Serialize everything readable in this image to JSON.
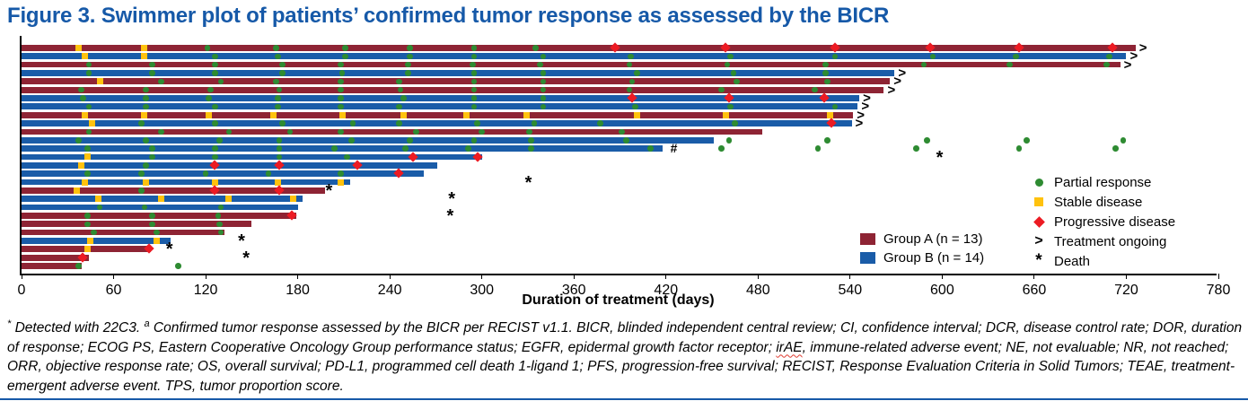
{
  "title": "Figure 3. Swimmer plot of patients’ confirmed tumor response as assessed by the BICR",
  "colors": {
    "title_blue": "#1659A8",
    "group_a": "#8E2434",
    "group_b": "#1A5CA8",
    "partial_response": "#2E8B32",
    "stable_disease": "#FFC20E",
    "progressive_disease": "#EC1B23",
    "axis": "#000000"
  },
  "legend": {
    "items": [
      {
        "marker": "partial-response",
        "label": "Partial response"
      },
      {
        "marker": "stable-disease",
        "label": "Stable disease"
      },
      {
        "marker": "progressive-disease",
        "label": "Progressive disease"
      },
      {
        "marker": "treatment-ongoing",
        "symbol": ">",
        "label": "Treatment ongoing"
      },
      {
        "marker": "death",
        "symbol": "*",
        "label": "Death"
      }
    ]
  },
  "group_legend": {
    "items": [
      {
        "group": "A",
        "label": "Group A (n = 13)",
        "color": "#8E2434"
      },
      {
        "group": "B",
        "label": "Group B (n = 14)",
        "color": "#1A5CA8"
      }
    ]
  },
  "chart_data": {
    "type": "bar",
    "variant": "swimmer",
    "title": "Figure 3. Swimmer plot of patients’ confirmed tumor response as assessed by the BICR",
    "xlabel": "Duration of treatment (days)",
    "xmax": 780,
    "xticks": [
      0,
      60,
      120,
      180,
      240,
      300,
      360,
      420,
      480,
      540,
      600,
      660,
      720,
      780
    ],
    "grid": false,
    "legend_position": "right",
    "marker_meanings": {
      "pr": "Partial response",
      "sd": "Stable disease",
      "pd": "Progressive disease",
      "ongoing": "Treatment ongoing",
      "death": "Death"
    },
    "patients": [
      {
        "group": "A",
        "end": 726,
        "ongoing": true,
        "sd": [
          37,
          80
        ],
        "pr": [
          121,
          166,
          211,
          253,
          295,
          335
        ],
        "pd": [
          387,
          459,
          530,
          592,
          650,
          711
        ]
      },
      {
        "group": "B",
        "end": 720,
        "ongoing": true,
        "sd": [
          41,
          80
        ],
        "pr": [
          126,
          167,
          211,
          253,
          295,
          340,
          397,
          462,
          530,
          594,
          648,
          709
        ]
      },
      {
        "group": "A",
        "end": 716,
        "ongoing": true,
        "pr": [
          44,
          85,
          126,
          170,
          208,
          252,
          294,
          338,
          396,
          460,
          524,
          588,
          644,
          707
        ]
      },
      {
        "group": "B",
        "end": 569,
        "ongoing": true,
        "pr": [
          44,
          85,
          126,
          170,
          209,
          252,
          295,
          340,
          401,
          464,
          524
        ]
      },
      {
        "group": "A",
        "end": 566,
        "ongoing": true,
        "sd": [
          51
        ],
        "pr": [
          91,
          130,
          166,
          208,
          246,
          295,
          340,
          398,
          466,
          525
        ]
      },
      {
        "group": "A",
        "end": 562,
        "ongoing": true,
        "pr": [
          39,
          81,
          123,
          168,
          208,
          247,
          295,
          340,
          396,
          456,
          517
        ]
      },
      {
        "group": "B",
        "end": 546,
        "ongoing": true,
        "pr": [
          40,
          81,
          122,
          167,
          208,
          249,
          295,
          340
        ],
        "pd": [
          398,
          461,
          523
        ]
      },
      {
        "group": "B",
        "end": 545,
        "ongoing": true,
        "pr": [
          44,
          81,
          126,
          167,
          208,
          246,
          295,
          340,
          400,
          462,
          530
        ]
      },
      {
        "group": "A",
        "end": 542,
        "ongoing": true,
        "sd": [
          41,
          80,
          122,
          164,
          209,
          249,
          290,
          329,
          401,
          459,
          527
        ]
      },
      {
        "group": "B",
        "end": 541,
        "ongoing": true,
        "sd": [
          46
        ],
        "pr": [
          78,
          126,
          170,
          216,
          246,
          297,
          334,
          377,
          465
        ],
        "pd": [
          528
        ]
      },
      {
        "group": "A",
        "end": 483,
        "ongoing": false,
        "pr": [
          44,
          91,
          135,
          175,
          208,
          257,
          300,
          331,
          391
        ]
      },
      {
        "group": "B",
        "end": 451,
        "ongoing": false,
        "pr": [
          37,
          81,
          129,
          168,
          215,
          253,
          295,
          332,
          394
        ],
        "pr_after": [
          461,
          525,
          590,
          655,
          718
        ]
      },
      {
        "group": "B",
        "end": 418,
        "ongoing": false,
        "hash": 424,
        "pr": [
          43,
          85,
          126,
          168,
          204,
          250,
          291,
          332,
          410
        ],
        "pr_after": [
          456,
          519,
          583,
          650,
          713
        ]
      },
      {
        "group": "B",
        "end": 300,
        "ongoing": false,
        "sd": [
          43
        ],
        "pr": [
          85,
          126,
          168,
          212
        ],
        "pd": [
          255,
          297
        ],
        "death": 599
      },
      {
        "group": "B",
        "end": 271,
        "ongoing": false,
        "sd": [
          39
        ],
        "pr": [
          81
        ],
        "pd": [
          126,
          168,
          219
        ]
      },
      {
        "group": "B",
        "end": 262,
        "ongoing": false,
        "pr": [
          43,
          78,
          120,
          161,
          208
        ],
        "pd": [
          246
        ]
      },
      {
        "group": "B",
        "end": 214,
        "ongoing": false,
        "sd": [
          41,
          81,
          126,
          167,
          208
        ],
        "death": 331
      },
      {
        "group": "A",
        "end": 198,
        "ongoing": false,
        "sd": [
          36
        ],
        "pr": [
          78
        ],
        "pd": [
          126,
          168
        ],
        "death": 201
      },
      {
        "group": "B",
        "end": 183,
        "ongoing": false,
        "sd": [
          50,
          91,
          135,
          177
        ],
        "death": 281
      },
      {
        "group": "B",
        "end": 180,
        "ongoing": false,
        "pr": [
          51,
          80,
          130
        ]
      },
      {
        "group": "A",
        "end": 179,
        "ongoing": false,
        "pr": [
          43,
          85,
          128
        ],
        "pd": [
          176
        ],
        "death": 280
      },
      {
        "group": "A",
        "end": 150,
        "ongoing": false,
        "pr": [
          43,
          85,
          129
        ]
      },
      {
        "group": "A",
        "end": 132,
        "ongoing": false,
        "pr": [
          47,
          88,
          130
        ]
      },
      {
        "group": "B",
        "end": 97,
        "ongoing": false,
        "sd": [
          45,
          88
        ],
        "death": 144
      },
      {
        "group": "A",
        "end": 84,
        "ongoing": false,
        "sd": [
          43
        ],
        "pd": [
          83
        ],
        "death": 97
      },
      {
        "group": "A",
        "end": 44,
        "ongoing": false,
        "pd": [
          40
        ],
        "death": 147
      },
      {
        "group": "A",
        "end": 39,
        "ongoing": false,
        "pr": [
          37
        ],
        "pr_after": [
          102
        ]
      }
    ]
  },
  "axis": {
    "xlabel": "Duration of treatment (days)"
  },
  "footnote": {
    "segments": [
      {
        "text": "*",
        "sup": true
      },
      {
        "text": " Detected with 22C3. "
      },
      {
        "text": "a",
        "sup": true
      },
      {
        "text": " Confirmed tumor response assessed by the BICR per RECIST v1.1. BICR, blinded independent central review; CI, confidence interval; DCR, disease control rate; DOR, duration of response; ECOG PS, Eastern Cooperative Oncology Group performance status; EGFR, epidermal growth factor receptor; "
      },
      {
        "text": "irAE",
        "squiggle": true
      },
      {
        "text": ", immune-related adverse event; NE, not evaluable; NR, not reached; ORR, objective response rate; OS, overall survival; PD-L1, programmed cell death 1-ligand 1; PFS, progression-free survival; RECIST, Response Evaluation Criteria in Solid Tumors; TEAE, treatment-emergent adverse event. TPS, tumor proportion score."
      }
    ]
  }
}
